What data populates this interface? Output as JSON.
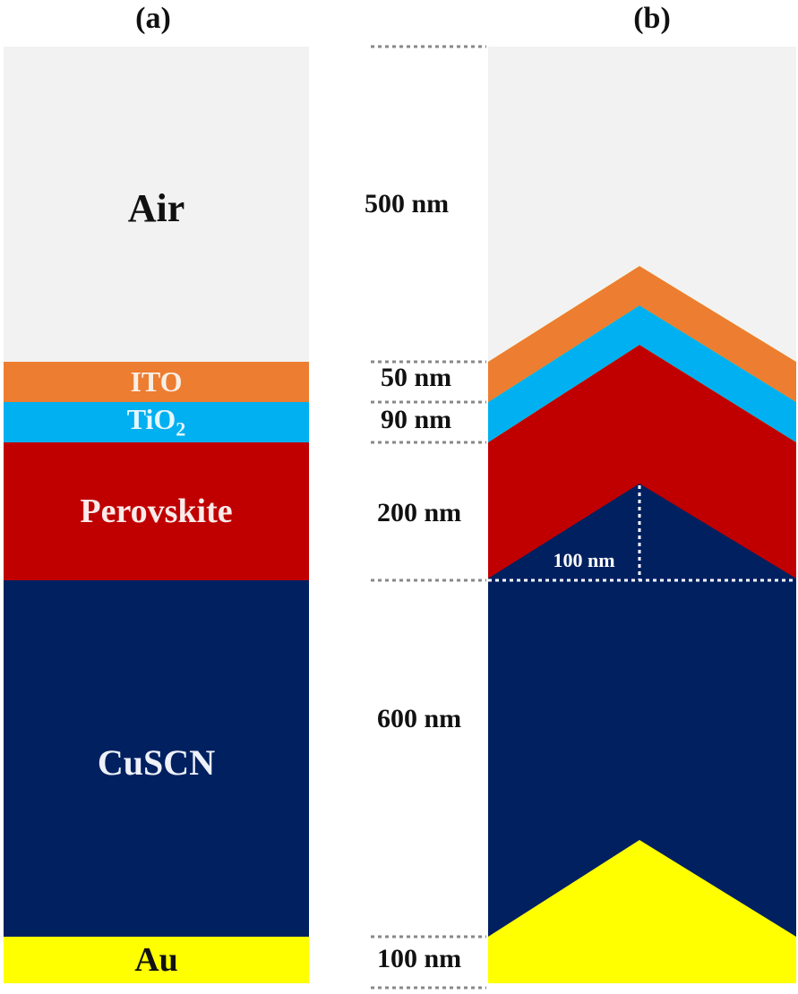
{
  "panels": {
    "a": {
      "label": "(a)"
    },
    "b": {
      "label": "(b)"
    }
  },
  "layers": [
    {
      "id": "air",
      "label": "Air",
      "thickness_label": "500 nm",
      "color": "#f2f2f2",
      "text_color": "#111111"
    },
    {
      "id": "ito",
      "label": "ITO",
      "thickness_label": "50 nm",
      "color": "#ed7d31",
      "text_color": "#f7efe6"
    },
    {
      "id": "tio2",
      "label": "TiO",
      "label_sub": "2",
      "thickness_label": "90 nm",
      "color": "#00b0f0",
      "text_color": "#e6f6fd"
    },
    {
      "id": "perovskite",
      "label": "Perovskite",
      "thickness_label": "200 nm",
      "color": "#c00000",
      "text_color": "#fbeaea"
    },
    {
      "id": "cuscn",
      "label": "CuSCN",
      "thickness_label": "600 nm",
      "color": "#002060",
      "text_color": "#eef1f8"
    },
    {
      "id": "au",
      "label": "Au",
      "thickness_label": "100 nm",
      "color": "#ffff00",
      "text_color": "#111111"
    }
  ],
  "texture": {
    "height_label": "100 nm"
  },
  "colors": {
    "guide_line": "#888888",
    "inner_guide": "#ffffff"
  }
}
